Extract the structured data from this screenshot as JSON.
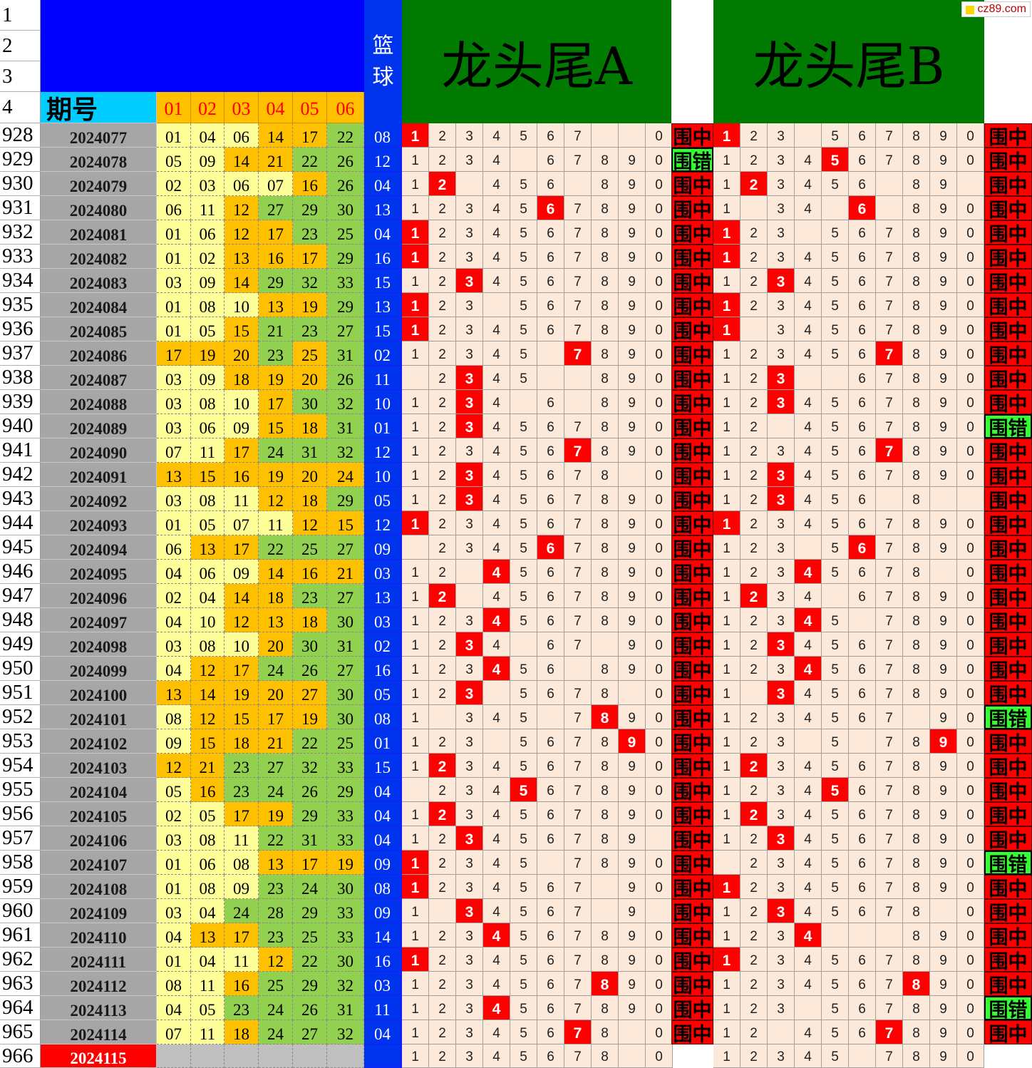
{
  "watermark": "cz89.com",
  "header": {
    "row_numbers": [
      "1",
      "2",
      "3",
      "4"
    ],
    "issue_label": "期号",
    "ball_labels": [
      "01",
      "02",
      "03",
      "04",
      "05",
      "06"
    ],
    "blue_label": "篮\n球",
    "titleA": "龙头尾A",
    "titleB": "龙头尾B"
  },
  "hit_label": "围中",
  "miss_label": "围错",
  "rows": [
    {
      "rn": "928",
      "issue": "2024077",
      "balls": [
        "01",
        "04",
        "06",
        "14",
        "17",
        "22"
      ],
      "bg": "yyyoog",
      "blue": "08",
      "a": "1234567__0",
      "ah": "1",
      "ra": "hit",
      "b": "123_567890",
      "bh": "1",
      "rb": "hit"
    },
    {
      "rn": "929",
      "issue": "2024078",
      "balls": [
        "05",
        "09",
        "14",
        "21",
        "22",
        "26"
      ],
      "bg": "yyoogg",
      "blue": "12",
      "a": "1234_67890",
      "ah": "",
      "ra": "miss",
      "b": "1234567890",
      "bh": "5",
      "rb": "hit"
    },
    {
      "rn": "930",
      "issue": "2024079",
      "balls": [
        "02",
        "03",
        "06",
        "07",
        "16",
        "26"
      ],
      "bg": "yyyyog",
      "blue": "04",
      "a": "12_456_890",
      "ah": "2",
      "ra": "hit",
      "b": "123456_89_",
      "bh": "2",
      "rb": "hit"
    },
    {
      "rn": "931",
      "issue": "2024080",
      "balls": [
        "06",
        "11",
        "12",
        "27",
        "29",
        "30"
      ],
      "bg": "yyoggg",
      "blue": "13",
      "a": "1234567890",
      "ah": "6",
      "ra": "hit",
      "b": "1_34_6_890",
      "bh": "6",
      "rb": "hit"
    },
    {
      "rn": "932",
      "issue": "2024081",
      "balls": [
        "01",
        "06",
        "12",
        "17",
        "23",
        "25"
      ],
      "bg": "yyoogg",
      "blue": "04",
      "a": "1234567890",
      "ah": "1",
      "ra": "hit",
      "b": "123_567890",
      "bh": "1",
      "rb": "hit"
    },
    {
      "rn": "933",
      "issue": "2024082",
      "balls": [
        "01",
        "02",
        "13",
        "16",
        "17",
        "29"
      ],
      "bg": "yyooog",
      "blue": "16",
      "a": "1234567890",
      "ah": "1",
      "ra": "hit",
      "b": "1234567890",
      "bh": "1",
      "rb": "hit"
    },
    {
      "rn": "934",
      "issue": "2024083",
      "balls": [
        "03",
        "09",
        "14",
        "29",
        "32",
        "33"
      ],
      "bg": "yyoggg",
      "blue": "15",
      "a": "1234567890",
      "ah": "3",
      "ra": "hit",
      "b": "1234567890",
      "bh": "3",
      "rb": "hit"
    },
    {
      "rn": "935",
      "issue": "2024084",
      "balls": [
        "01",
        "08",
        "10",
        "13",
        "19",
        "29"
      ],
      "bg": "yyyoog",
      "blue": "13",
      "a": "123_567890",
      "ah": "1",
      "ra": "hit",
      "b": "1234567890",
      "bh": "1",
      "rb": "hit"
    },
    {
      "rn": "936",
      "issue": "2024085",
      "balls": [
        "01",
        "05",
        "15",
        "21",
        "23",
        "27"
      ],
      "bg": "yyoggg",
      "blue": "15",
      "a": "1234567890",
      "ah": "1",
      "ra": "hit",
      "b": "1_34567890",
      "bh": "1",
      "rb": "hit"
    },
    {
      "rn": "937",
      "issue": "2024086",
      "balls": [
        "17",
        "19",
        "20",
        "23",
        "25",
        "31"
      ],
      "bg": "ooogog",
      "blue": "02",
      "a": "12345_7890",
      "ah": "7",
      "ra": "hit",
      "b": "1234567890",
      "bh": "7",
      "rb": "hit"
    },
    {
      "rn": "938",
      "issue": "2024087",
      "balls": [
        "03",
        "09",
        "18",
        "19",
        "20",
        "26"
      ],
      "bg": "yyooog",
      "blue": "11",
      "a": "_2345__890",
      "ah": "3",
      "ra": "hit",
      "b": "123__67890",
      "bh": "3",
      "rb": "hit"
    },
    {
      "rn": "939",
      "issue": "2024088",
      "balls": [
        "03",
        "08",
        "10",
        "17",
        "30",
        "32"
      ],
      "bg": "yyyogg",
      "blue": "10",
      "a": "1234_6_890",
      "ah": "3",
      "ra": "hit",
      "b": "1234567890",
      "bh": "3",
      "rb": "hit"
    },
    {
      "rn": "940",
      "issue": "2024089",
      "balls": [
        "03",
        "06",
        "09",
        "15",
        "18",
        "31"
      ],
      "bg": "yyyoog",
      "blue": "01",
      "a": "1234567890",
      "ah": "3",
      "ra": "hit",
      "b": "12_4567890",
      "bh": "",
      "rb": "miss"
    },
    {
      "rn": "941",
      "issue": "2024090",
      "balls": [
        "07",
        "11",
        "17",
        "24",
        "31",
        "32"
      ],
      "bg": "yyoggg",
      "blue": "12",
      "a": "1234567890",
      "ah": "7",
      "ra": "hit",
      "b": "1234567890",
      "bh": "7",
      "rb": "hit"
    },
    {
      "rn": "942",
      "issue": "2024091",
      "balls": [
        "13",
        "15",
        "16",
        "19",
        "20",
        "24"
      ],
      "bg": "oooooo",
      "blue": "10",
      "a": "12345678_0",
      "ah": "3",
      "ra": "hit",
      "b": "1234567890",
      "bh": "3",
      "rb": "hit"
    },
    {
      "rn": "943",
      "issue": "2024092",
      "balls": [
        "03",
        "08",
        "11",
        "12",
        "18",
        "29"
      ],
      "bg": "yyyoog",
      "blue": "05",
      "a": "1234567890",
      "ah": "3",
      "ra": "hit",
      "b": "123456_8__",
      "bh": "3",
      "rb": "hit"
    },
    {
      "rn": "944",
      "issue": "2024093",
      "balls": [
        "01",
        "05",
        "07",
        "11",
        "12",
        "15"
      ],
      "bg": "yyyyoo",
      "blue": "12",
      "a": "1234567890",
      "ah": "1",
      "ra": "hit",
      "b": "1234567890",
      "bh": "1",
      "rb": "hit"
    },
    {
      "rn": "945",
      "issue": "2024094",
      "balls": [
        "06",
        "13",
        "17",
        "22",
        "25",
        "27"
      ],
      "bg": "yooggg",
      "blue": "09",
      "a": "_234567890",
      "ah": "6",
      "ra": "hit",
      "b": "123_567890",
      "bh": "6",
      "rb": "hit"
    },
    {
      "rn": "946",
      "issue": "2024095",
      "balls": [
        "04",
        "06",
        "09",
        "14",
        "16",
        "21"
      ],
      "bg": "yyyooo",
      "blue": "03",
      "a": "12_4567890",
      "ah": "4",
      "ra": "hit",
      "b": "12345678_0",
      "bh": "4",
      "rb": "hit"
    },
    {
      "rn": "947",
      "issue": "2024096",
      "balls": [
        "02",
        "04",
        "14",
        "18",
        "23",
        "27"
      ],
      "bg": "yyoogg",
      "blue": "13",
      "a": "12_4567890",
      "ah": "2",
      "ra": "hit",
      "b": "1234_67890",
      "bh": "2",
      "rb": "hit"
    },
    {
      "rn": "948",
      "issue": "2024097",
      "balls": [
        "04",
        "10",
        "12",
        "13",
        "18",
        "30"
      ],
      "bg": "yyooog",
      "blue": "03",
      "a": "1234567890",
      "ah": "4",
      "ra": "hit",
      "b": "12345_7890",
      "bh": "4",
      "rb": "hit"
    },
    {
      "rn": "949",
      "issue": "2024098",
      "balls": [
        "03",
        "08",
        "10",
        "20",
        "30",
        "31"
      ],
      "bg": "yyyogg",
      "blue": "02",
      "a": "1234_67_90",
      "ah": "3",
      "ra": "hit",
      "b": "1234567890",
      "bh": "3",
      "rb": "hit"
    },
    {
      "rn": "950",
      "issue": "2024099",
      "balls": [
        "04",
        "12",
        "17",
        "24",
        "26",
        "27"
      ],
      "bg": "yooggg",
      "blue": "16",
      "a": "123456_890",
      "ah": "4",
      "ra": "hit",
      "b": "1234567890",
      "bh": "4",
      "rb": "hit"
    },
    {
      "rn": "951",
      "issue": "2024100",
      "balls": [
        "13",
        "14",
        "19",
        "20",
        "27",
        "30"
      ],
      "bg": "ooooog",
      "blue": "05",
      "a": "123_5678_0",
      "ah": "3",
      "ra": "hit",
      "b": "1_34567890",
      "bh": "3",
      "rb": "hit"
    },
    {
      "rn": "952",
      "issue": "2024101",
      "balls": [
        "08",
        "12",
        "15",
        "17",
        "19",
        "30"
      ],
      "bg": "yoooog",
      "blue": "08",
      "a": "1_345_7890",
      "ah": "8",
      "ra": "hit",
      "b": "1234567_90",
      "bh": "",
      "rb": "miss"
    },
    {
      "rn": "953",
      "issue": "2024102",
      "balls": [
        "09",
        "15",
        "18",
        "21",
        "22",
        "25"
      ],
      "bg": "yooogg",
      "blue": "01",
      "a": "123_567890",
      "ah": "9",
      "ra": "hit",
      "b": "123_5_7890",
      "bh": "9",
      "rb": "hit"
    },
    {
      "rn": "954",
      "issue": "2024103",
      "balls": [
        "12",
        "21",
        "23",
        "27",
        "32",
        "33"
      ],
      "bg": "oogggg",
      "blue": "15",
      "a": "1234567890",
      "ah": "2",
      "ra": "hit",
      "b": "1234567890",
      "bh": "2",
      "rb": "hit"
    },
    {
      "rn": "955",
      "issue": "2024104",
      "balls": [
        "05",
        "16",
        "23",
        "24",
        "26",
        "29"
      ],
      "bg": "yogggg",
      "blue": "04",
      "a": "_234567890",
      "ah": "5",
      "ra": "hit",
      "b": "1234567890",
      "bh": "5",
      "rb": "hit"
    },
    {
      "rn": "956",
      "issue": "2024105",
      "balls": [
        "02",
        "05",
        "17",
        "19",
        "29",
        "33"
      ],
      "bg": "yyoogg",
      "blue": "04",
      "a": "1234567890",
      "ah": "2",
      "ra": "hit",
      "b": "1234567890",
      "bh": "2",
      "rb": "hit"
    },
    {
      "rn": "957",
      "issue": "2024106",
      "balls": [
        "03",
        "08",
        "11",
        "22",
        "31",
        "33"
      ],
      "bg": "yyyggg",
      "blue": "04",
      "a": "123456789_",
      "ah": "3",
      "ra": "hit",
      "b": "1234567890",
      "bh": "3",
      "rb": "hit"
    },
    {
      "rn": "958",
      "issue": "2024107",
      "balls": [
        "01",
        "06",
        "08",
        "13",
        "17",
        "19"
      ],
      "bg": "yyyooo",
      "blue": "09",
      "a": "12345_7890",
      "ah": "1",
      "ra": "hit",
      "b": "_234567890",
      "bh": "",
      "rb": "miss"
    },
    {
      "rn": "959",
      "issue": "2024108",
      "balls": [
        "01",
        "08",
        "09",
        "23",
        "24",
        "30"
      ],
      "bg": "yyyggg",
      "blue": "08",
      "a": "1234567_90",
      "ah": "1",
      "ra": "hit",
      "b": "1234567890",
      "bh": "1",
      "rb": "hit"
    },
    {
      "rn": "960",
      "issue": "2024109",
      "balls": [
        "03",
        "04",
        "24",
        "28",
        "29",
        "33"
      ],
      "bg": "yygggg",
      "blue": "09",
      "a": "1_34567_9_",
      "ah": "3",
      "ra": "hit",
      "b": "12345678_0",
      "bh": "3",
      "rb": "hit"
    },
    {
      "rn": "961",
      "issue": "2024110",
      "balls": [
        "04",
        "13",
        "17",
        "23",
        "25",
        "33"
      ],
      "bg": "yooggg",
      "blue": "14",
      "a": "1234567890",
      "ah": "4",
      "ra": "hit",
      "b": "1234___890",
      "bh": "4",
      "rb": "hit"
    },
    {
      "rn": "962",
      "issue": "2024111",
      "balls": [
        "01",
        "04",
        "11",
        "12",
        "22",
        "30"
      ],
      "bg": "yyyogg",
      "blue": "16",
      "a": "1234567890",
      "ah": "1",
      "ra": "hit",
      "b": "1234567890",
      "bh": "1",
      "rb": "hit"
    },
    {
      "rn": "963",
      "issue": "2024112",
      "balls": [
        "08",
        "11",
        "16",
        "25",
        "29",
        "32"
      ],
      "bg": "yyoggg",
      "blue": "03",
      "a": "1234567890",
      "ah": "8",
      "ra": "hit",
      "b": "1234567890",
      "bh": "8",
      "rb": "hit"
    },
    {
      "rn": "964",
      "issue": "2024113",
      "balls": [
        "04",
        "05",
        "23",
        "24",
        "26",
        "31"
      ],
      "bg": "yygggg",
      "blue": "11",
      "a": "1234567890",
      "ah": "4",
      "ra": "hit",
      "b": "123_567890",
      "bh": "",
      "rb": "miss"
    },
    {
      "rn": "965",
      "issue": "2024114",
      "balls": [
        "07",
        "11",
        "18",
        "24",
        "27",
        "32"
      ],
      "bg": "yyoggg",
      "blue": "04",
      "a": "12345678_0",
      "ah": "7",
      "ra": "hit",
      "b": "12_4567890",
      "bh": "7",
      "rb": "hit"
    }
  ],
  "next": {
    "rn": "966",
    "issue": "2024115",
    "a": "12345678_0",
    "b": "12345_7890"
  },
  "colors": {
    "blue_header": "#0000ff",
    "green_title": "#007a00",
    "hit_red": "#ff0000",
    "miss_green": "#33ff33",
    "pink": "#fde9d9"
  }
}
